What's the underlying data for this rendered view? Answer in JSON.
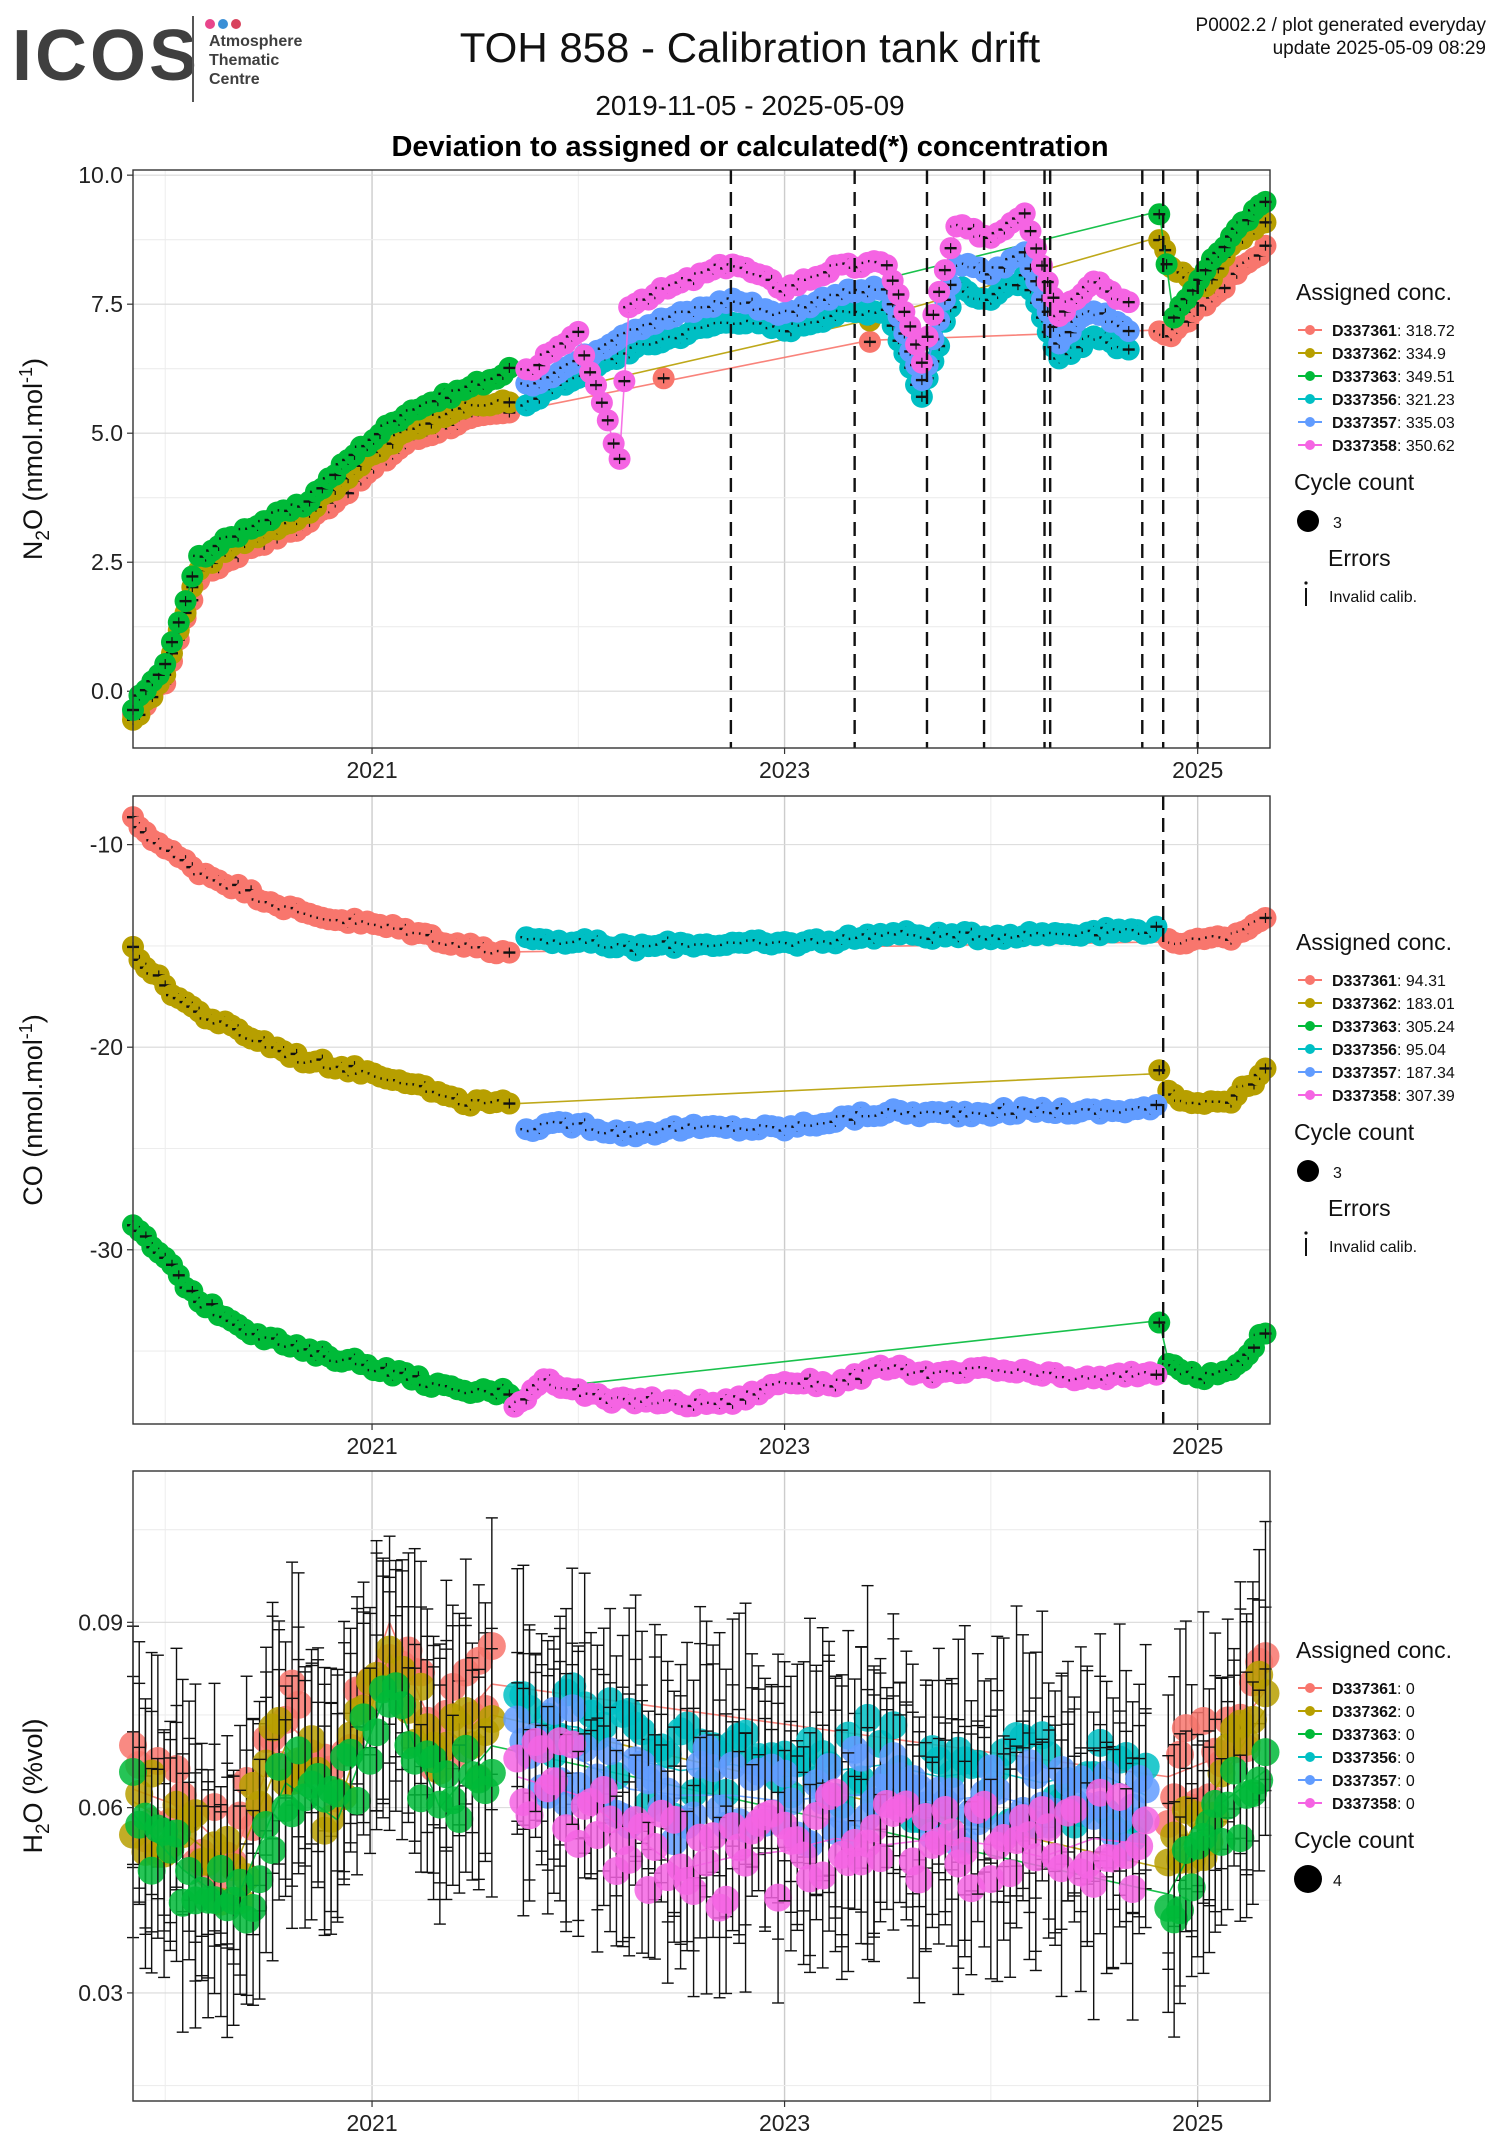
{
  "logo": {
    "wordmark": "ICOS",
    "line1": "Atmosphere",
    "line2": "Thematic",
    "line3": "Centre",
    "dot_colors": [
      "#e8458b",
      "#3a8fd6",
      "#d8425c"
    ]
  },
  "header": {
    "title": "TOH 858 - Calibration tank drift",
    "plot_id": "P0002.2 / plot generated everyday",
    "update": "update  2025-05-09 08:29",
    "date_range": "2019-11-05 - 2025-05-09",
    "subtitle": "Deviation to assigned or calculated(*) concentration"
  },
  "series_colors": {
    "D337361": "#f8766d",
    "D337362": "#b79f00",
    "D337363": "#00ba38",
    "D337356": "#00bfc4",
    "D337357": "#619cff",
    "D337358": "#f564e3"
  },
  "chart_data": [
    {
      "type": "scatter",
      "panel": "N2O",
      "ylabel": "N2O (nmol.mol-1)",
      "x_ticks": [
        "2021",
        "2023",
        "2025"
      ],
      "y_ticks": [
        "0.0",
        "2.5",
        "5.0",
        "7.5",
        "10.0"
      ],
      "xlim": [
        "2019-11-05",
        "2025-05-09"
      ],
      "ylim": [
        -1.1,
        10.1
      ],
      "grid": true,
      "event_lines": [
        "2022-09-28",
        "2023-05-05",
        "2023-09-10",
        "2023-12-20",
        "2024-04-05",
        "2024-04-15",
        "2024-09-25",
        "2024-11-01",
        "2025-01-01"
      ],
      "legend": {
        "title": "Assigned conc.",
        "entries": [
          {
            "name": "D337361",
            "value": "318.72"
          },
          {
            "name": "D337362",
            "value": "334.9"
          },
          {
            "name": "D337363",
            "value": "349.51"
          },
          {
            "name": "D337356",
            "value": "321.23"
          },
          {
            "name": "D337357",
            "value": "335.03"
          },
          {
            "name": "D337358",
            "value": "350.62"
          }
        ],
        "cycle_title": "Cycle count",
        "cycle_value": "3",
        "errors_title": "Errors",
        "errors_label": "Invalid calib."
      },
      "series": [
        {
          "name": "D337361",
          "x": [
            "2019-11-05",
            "2020-01-01",
            "2020-03-01",
            "2020-06-01",
            "2020-09-01",
            "2020-12-01",
            "2021-03-01",
            "2021-06-01",
            "2021-09-01",
            "2022-06-01",
            "2023-06-01",
            "2024-10-25",
            "2024-11-15",
            "2025-01-15",
            "2025-03-01",
            "2025-05-01"
          ],
          "y": [
            -0.5,
            0.2,
            2.2,
            2.8,
            3.2,
            4.0,
            4.8,
            5.2,
            5.4,
            6.0,
            6.8,
            7.0,
            6.9,
            7.5,
            8.0,
            8.6
          ]
        },
        {
          "name": "D337362",
          "x": [
            "2019-11-05",
            "2020-01-01",
            "2020-03-01",
            "2020-06-01",
            "2020-09-01",
            "2020-12-01",
            "2021-03-01",
            "2021-06-01",
            "2021-09-01",
            "2023-06-01",
            "2024-10-25",
            "2024-11-15",
            "2025-01-15",
            "2025-03-01",
            "2025-05-01"
          ],
          "y": [
            -0.6,
            0.3,
            2.4,
            3.0,
            3.4,
            4.3,
            5.0,
            5.5,
            5.6,
            7.2,
            8.8,
            8.2,
            7.8,
            8.6,
            9.1
          ]
        },
        {
          "name": "D337363",
          "x": [
            "2019-11-05",
            "2020-01-01",
            "2020-03-01",
            "2020-06-01",
            "2020-09-01",
            "2020-12-01",
            "2021-03-01",
            "2021-06-01",
            "2021-09-01",
            "2024-10-25",
            "2024-11-20",
            "2025-01-15",
            "2025-03-01",
            "2025-05-01"
          ],
          "y": [
            -0.3,
            0.5,
            2.6,
            3.2,
            3.6,
            4.6,
            5.4,
            5.8,
            6.2,
            9.3,
            7.2,
            8.2,
            8.8,
            9.5
          ]
        },
        {
          "name": "D337356",
          "x": [
            "2021-10-01",
            "2022-01-01",
            "2022-04-01",
            "2022-07-01",
            "2022-10-01",
            "2023-01-01",
            "2023-04-01",
            "2023-07-01",
            "2023-09-01",
            "2023-11-01",
            "2024-01-01",
            "2024-03-01",
            "2024-05-01",
            "2024-07-01",
            "2024-09-01"
          ],
          "y": [
            5.6,
            6.1,
            6.6,
            6.9,
            7.2,
            7.0,
            7.3,
            7.4,
            5.7,
            7.8,
            7.6,
            8.0,
            6.4,
            6.9,
            6.6
          ]
        },
        {
          "name": "D337357",
          "x": [
            "2021-10-01",
            "2022-01-01",
            "2022-04-01",
            "2022-07-01",
            "2022-10-01",
            "2023-01-01",
            "2023-04-01",
            "2023-07-01",
            "2023-09-01",
            "2023-11-01",
            "2024-01-01",
            "2024-03-01",
            "2024-05-01",
            "2024-07-01",
            "2024-09-01"
          ],
          "y": [
            5.9,
            6.4,
            7.0,
            7.3,
            7.6,
            7.3,
            7.7,
            7.8,
            6.0,
            8.3,
            8.1,
            8.5,
            6.8,
            7.4,
            7.0
          ]
        },
        {
          "name": "D337358",
          "x": [
            "2021-10-01",
            "2022-01-01",
            "2022-03-15",
            "2022-04-01",
            "2022-07-01",
            "2022-10-01",
            "2023-01-01",
            "2023-04-01",
            "2023-07-01",
            "2023-09-01",
            "2023-11-01",
            "2024-01-01",
            "2024-03-01",
            "2024-05-01",
            "2024-07-01",
            "2024-09-01"
          ],
          "y": [
            6.2,
            6.9,
            4.5,
            7.5,
            7.9,
            8.3,
            7.8,
            8.2,
            8.3,
            6.4,
            9.0,
            8.8,
            9.3,
            7.3,
            8.0,
            7.5
          ]
        }
      ]
    },
    {
      "type": "scatter",
      "panel": "CO",
      "ylabel": "CO (nmol.mol-1)",
      "x_ticks": [
        "2021",
        "2023",
        "2025"
      ],
      "y_ticks": [
        "-30",
        "-20",
        "-10"
      ],
      "xlim": [
        "2019-11-05",
        "2025-05-09"
      ],
      "ylim": [
        -38.6,
        -7.6
      ],
      "grid": true,
      "event_lines": [
        "2024-11-01"
      ],
      "legend": {
        "title": "Assigned conc.",
        "entries": [
          {
            "name": "D337361",
            "value": "94.31"
          },
          {
            "name": "D337362",
            "value": "183.01"
          },
          {
            "name": "D337363",
            "value": "305.24"
          },
          {
            "name": "D337356",
            "value": "95.04"
          },
          {
            "name": "D337357",
            "value": "187.34"
          },
          {
            "name": "D337358",
            "value": "307.39"
          }
        ],
        "cycle_title": "Cycle count",
        "cycle_value": "3",
        "errors_title": "Errors",
        "errors_label": "Invalid calib."
      },
      "series": [
        {
          "name": "D337361",
          "x": [
            "2019-11-05",
            "2020-01-01",
            "2020-03-01",
            "2020-06-01",
            "2020-09-01",
            "2020-12-01",
            "2021-03-01",
            "2021-06-01",
            "2021-09-01",
            "2024-11-10",
            "2025-01-01",
            "2025-03-01",
            "2025-05-01"
          ],
          "y": [
            -8.8,
            -10.2,
            -11.3,
            -12.4,
            -13.4,
            -13.8,
            -14.2,
            -14.9,
            -15.3,
            -14.8,
            -14.8,
            -14.6,
            -13.6
          ]
        },
        {
          "name": "D337362",
          "x": [
            "2019-11-05",
            "2020-01-01",
            "2020-03-01",
            "2020-06-01",
            "2020-09-01",
            "2020-12-01",
            "2021-03-01",
            "2021-06-01",
            "2021-09-01",
            "2024-10-25",
            "2024-11-10",
            "2025-01-01",
            "2025-03-01",
            "2025-05-01"
          ],
          "y": [
            -15.2,
            -17.0,
            -18.3,
            -19.5,
            -20.6,
            -21.1,
            -21.6,
            -22.7,
            -22.8,
            -21.3,
            -22.3,
            -22.7,
            -22.6,
            -21.2
          ]
        },
        {
          "name": "D337363",
          "x": [
            "2019-11-05",
            "2020-01-01",
            "2020-03-01",
            "2020-06-01",
            "2020-09-01",
            "2020-12-01",
            "2021-03-01",
            "2021-06-01",
            "2021-09-01",
            "2024-10-25",
            "2024-11-10",
            "2025-01-01",
            "2025-03-01",
            "2025-05-01"
          ],
          "y": [
            -28.8,
            -30.5,
            -32.5,
            -34.0,
            -35.0,
            -35.5,
            -36.2,
            -37.0,
            -37.0,
            -33.5,
            -35.5,
            -36.3,
            -36.0,
            -34.0
          ]
        },
        {
          "name": "D337356",
          "x": [
            "2021-10-01",
            "2022-01-01",
            "2022-04-01",
            "2022-07-01",
            "2022-10-01",
            "2023-01-01",
            "2023-04-01",
            "2023-07-01",
            "2023-10-01",
            "2024-01-01",
            "2024-04-01",
            "2024-07-01",
            "2024-10-20"
          ],
          "y": [
            -14.6,
            -14.8,
            -15.1,
            -14.9,
            -14.9,
            -14.9,
            -14.7,
            -14.4,
            -14.5,
            -14.5,
            -14.4,
            -14.3,
            -14.2
          ]
        },
        {
          "name": "D337357",
          "x": [
            "2021-10-01",
            "2022-01-01",
            "2022-04-01",
            "2022-07-01",
            "2022-10-01",
            "2023-01-01",
            "2023-04-01",
            "2023-07-01",
            "2023-10-01",
            "2024-01-01",
            "2024-04-01",
            "2024-07-01",
            "2024-10-20"
          ],
          "y": [
            -24.0,
            -23.8,
            -24.3,
            -24.0,
            -24.0,
            -24.0,
            -23.6,
            -23.2,
            -23.3,
            -23.2,
            -23.1,
            -23.2,
            -23.0
          ]
        },
        {
          "name": "D337358",
          "x": [
            "2021-09-10",
            "2021-11-01",
            "2022-01-01",
            "2022-03-01",
            "2022-05-01",
            "2022-07-01",
            "2022-10-01",
            "2023-01-01",
            "2023-04-01",
            "2023-07-01",
            "2023-10-01",
            "2024-01-01",
            "2024-04-01",
            "2024-07-01",
            "2024-10-20"
          ],
          "y": [
            -37.8,
            -36.3,
            -37.0,
            -37.5,
            -37.4,
            -37.6,
            -37.5,
            -36.5,
            -36.6,
            -35.8,
            -36.2,
            -35.9,
            -36.2,
            -36.4,
            -36.0
          ]
        }
      ]
    },
    {
      "type": "scatter",
      "panel": "H2O",
      "ylabel": "H2O (%vol)",
      "x_ticks": [
        "2021",
        "2023",
        "2025"
      ],
      "y_ticks": [
        "0.03",
        "0.06",
        "0.09"
      ],
      "xlim": [
        "2019-11-05",
        "2025-05-09"
      ],
      "ylim": [
        0.0125,
        0.1145
      ],
      "grid": true,
      "event_lines": [],
      "legend": {
        "title": "Assigned conc.",
        "entries": [
          {
            "name": "D337361",
            "value": "0"
          },
          {
            "name": "D337362",
            "value": "0"
          },
          {
            "name": "D337363",
            "value": "0"
          },
          {
            "name": "D337356",
            "value": "0"
          },
          {
            "name": "D337357",
            "value": "0"
          },
          {
            "name": "D337358",
            "value": "0"
          }
        ],
        "cycle_title": "Cycle count",
        "cycle_value": "4"
      },
      "series": [
        {
          "name": "D337361",
          "x": [
            "2019-11-05",
            "2020-02-01",
            "2020-05-01",
            "2020-08-01",
            "2020-11-01",
            "2021-02-01",
            "2021-05-01",
            "2021-08-01",
            "2024-11-10",
            "2025-02-01",
            "2025-05-01"
          ],
          "y": [
            0.063,
            0.06,
            0.052,
            0.074,
            0.066,
            0.09,
            0.07,
            0.08,
            0.065,
            0.068,
            0.079
          ]
        },
        {
          "name": "D337362",
          "x": [
            "2019-11-05",
            "2020-02-01",
            "2020-05-01",
            "2020-08-01",
            "2020-11-01",
            "2021-02-01",
            "2021-05-01",
            "2021-08-01",
            "2024-11-10",
            "2025-02-01",
            "2025-05-01"
          ],
          "y": [
            0.061,
            0.056,
            0.05,
            0.07,
            0.06,
            0.085,
            0.066,
            0.075,
            0.05,
            0.063,
            0.076
          ]
        },
        {
          "name": "D337363",
          "x": [
            "2019-11-05",
            "2020-02-01",
            "2020-05-01",
            "2020-08-01",
            "2020-11-01",
            "2021-02-01",
            "2021-05-01",
            "2021-08-01",
            "2024-11-10",
            "2025-02-01",
            "2025-05-01"
          ],
          "y": [
            0.059,
            0.05,
            0.044,
            0.064,
            0.058,
            0.08,
            0.06,
            0.07,
            0.046,
            0.06,
            0.066
          ]
        },
        {
          "name": "D337356",
          "x": [
            "2021-09-15",
            "2022-01-01",
            "2022-04-01",
            "2022-07-01",
            "2022-10-01",
            "2023-01-01",
            "2023-04-01",
            "2023-07-01",
            "2023-10-01",
            "2024-01-01",
            "2024-04-01",
            "2024-07-01",
            "2024-10-01"
          ],
          "y": [
            0.074,
            0.073,
            0.068,
            0.066,
            0.067,
            0.065,
            0.066,
            0.067,
            0.065,
            0.066,
            0.064,
            0.066,
            0.062
          ]
        },
        {
          "name": "D337357",
          "x": [
            "2021-09-15",
            "2022-01-01",
            "2022-04-01",
            "2022-07-01",
            "2022-10-01",
            "2023-01-01",
            "2023-04-01",
            "2023-07-01",
            "2023-10-01",
            "2024-01-01",
            "2024-04-01",
            "2024-07-01",
            "2024-10-01"
          ],
          "y": [
            0.07,
            0.068,
            0.063,
            0.062,
            0.062,
            0.061,
            0.062,
            0.062,
            0.061,
            0.062,
            0.06,
            0.062,
            0.058
          ]
        },
        {
          "name": "D337358",
          "x": [
            "2021-09-15",
            "2022-01-01",
            "2022-04-01",
            "2022-07-01",
            "2022-10-01",
            "2023-01-01",
            "2023-04-01",
            "2023-07-01",
            "2023-10-01",
            "2024-01-01",
            "2024-04-01",
            "2024-07-01",
            "2024-10-01"
          ],
          "y": [
            0.065,
            0.062,
            0.056,
            0.05,
            0.052,
            0.053,
            0.055,
            0.054,
            0.055,
            0.054,
            0.052,
            0.055,
            0.054
          ]
        }
      ]
    }
  ]
}
